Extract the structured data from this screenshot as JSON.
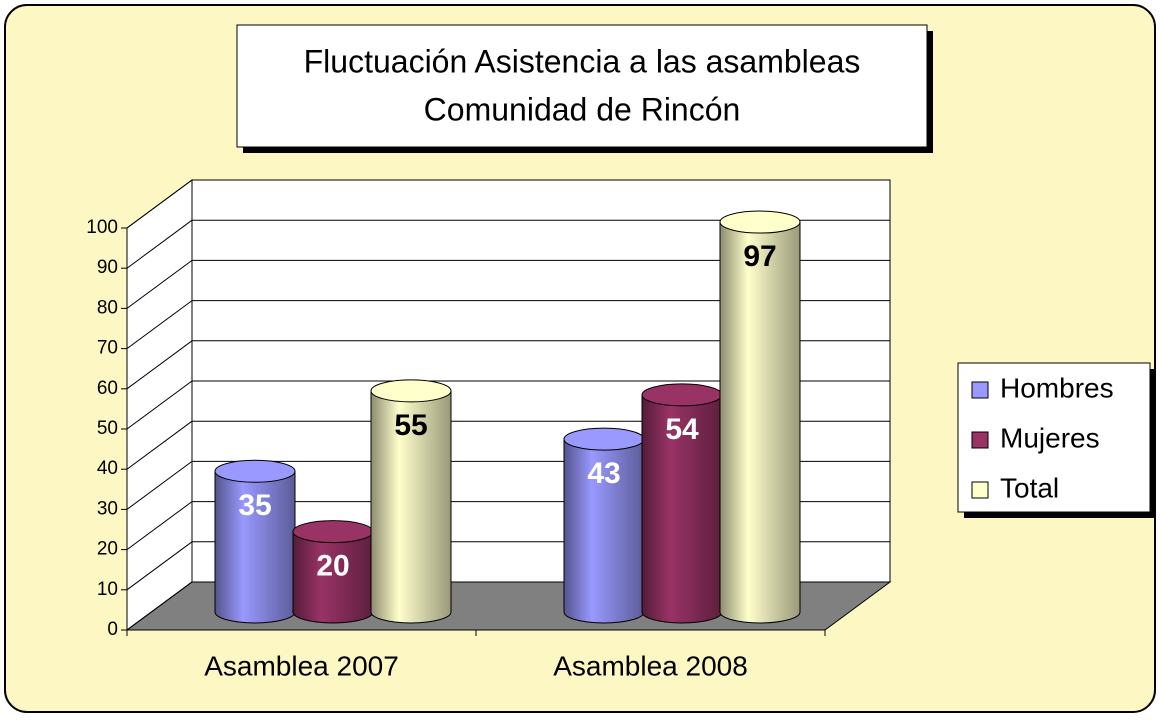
{
  "chart_data": {
    "type": "cylinder",
    "title": "Fluctuación Asistencia a las asambleas",
    "subtitle": "Comunidad de Rincón",
    "categories": [
      "Asamblea 2007",
      "Asamblea 2008"
    ],
    "series": [
      {
        "name": "Hombres",
        "color": "#9999ff",
        "values": [
          35,
          43
        ]
      },
      {
        "name": "Mujeres",
        "color": "#993366",
        "values": [
          20,
          54
        ]
      },
      {
        "name": "Total",
        "color": "#ffffcc",
        "values": [
          55,
          97
        ]
      }
    ],
    "ylim": [
      0,
      100
    ],
    "yticks": [
      0,
      10,
      20,
      30,
      40,
      50,
      60,
      70,
      80,
      90,
      100
    ],
    "grid": true,
    "legend": "right"
  }
}
